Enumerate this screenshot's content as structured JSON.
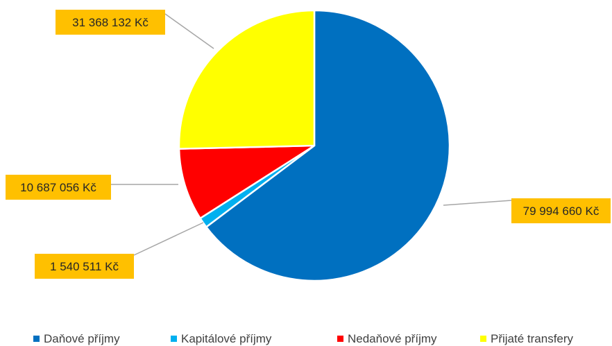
{
  "chart_data": {
    "type": "pie",
    "title": "",
    "currency_suffix": "Kč",
    "legend_position": "bottom",
    "series": [
      {
        "name": "Daňové příjmy",
        "value": 79994660,
        "label": "79 994 660 Kč",
        "color": "#0070C0"
      },
      {
        "name": "Kapitálové příjmy",
        "value": 1540511,
        "label": "1 540 511 Kč",
        "color": "#00B0F0"
      },
      {
        "name": "Nedaňové příjmy",
        "value": 10687056,
        "label": "10 687 056 Kč",
        "color": "#FF0000"
      },
      {
        "name": "Přijaté transfery",
        "value": 31368132,
        "label": "31 368 132 Kč",
        "color": "#FFFF00"
      }
    ],
    "label_box_color": "#FFC000"
  }
}
